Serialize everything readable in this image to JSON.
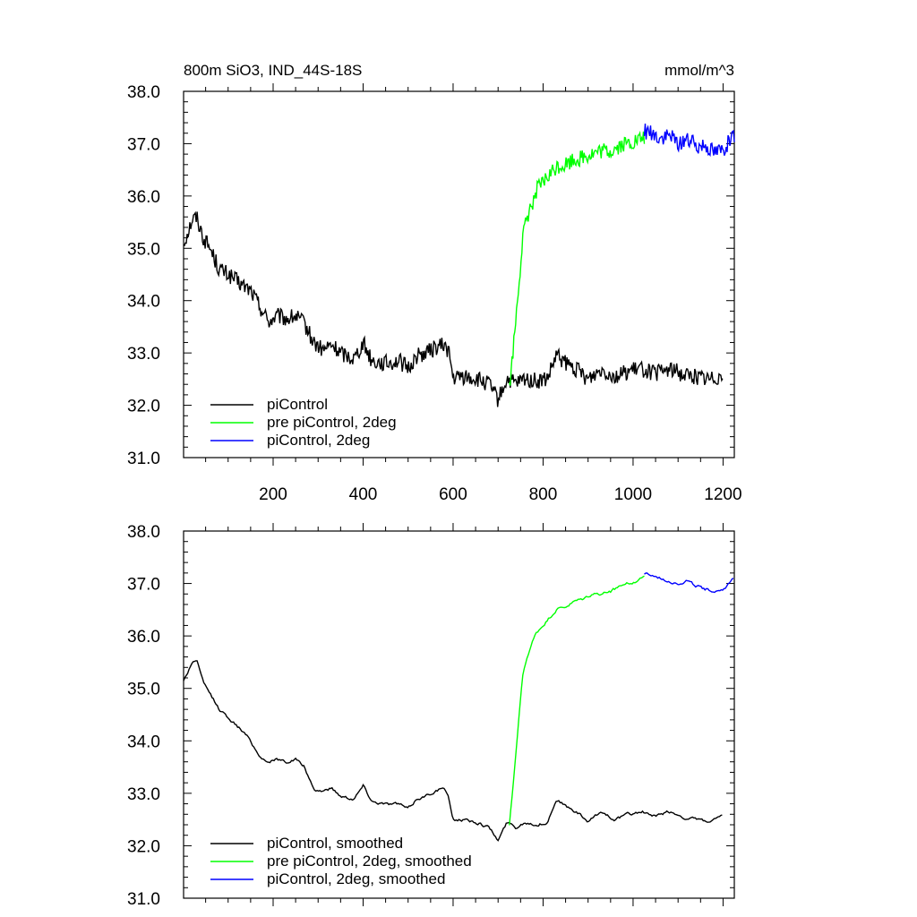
{
  "chart_data": [
    {
      "type": "line",
      "title": "800m SiO3, IND_44S-18S",
      "unit_label": "mmol/m^3",
      "xlim": [
        1,
        1225
      ],
      "ylim": [
        31.0,
        38.0
      ],
      "x_ticks": [
        200,
        400,
        600,
        800,
        1000,
        1200
      ],
      "x_tick_labels": [
        "200",
        "400",
        "600",
        "800",
        "1000",
        "1200"
      ],
      "y_ticks": [
        31.0,
        32.0,
        33.0,
        34.0,
        35.0,
        36.0,
        37.0,
        38.0
      ],
      "y_tick_labels": [
        "31.0",
        "32.0",
        "33.0",
        "34.0",
        "35.0",
        "36.0",
        "37.0",
        "38.0"
      ],
      "grid": false,
      "legend_position": "bottom-left",
      "series": [
        {
          "name": "piControl",
          "color": "#000000",
          "x": [
            1,
            10,
            20,
            30,
            45,
            60,
            80,
            100,
            130,
            150,
            170,
            190,
            210,
            230,
            250,
            270,
            290,
            310,
            330,
            350,
            380,
            400,
            420,
            450,
            480,
            500,
            520,
            540,
            560,
            580,
            590,
            600,
            620,
            650,
            680,
            700,
            720,
            740,
            760,
            790,
            810,
            830,
            850,
            880,
            900,
            930,
            960,
            990,
            1020,
            1050,
            1080,
            1110,
            1140,
            1170,
            1200
          ],
          "y": [
            35.1,
            35.3,
            35.55,
            35.6,
            35.2,
            35.0,
            34.6,
            34.5,
            34.3,
            34.2,
            33.9,
            33.6,
            33.7,
            33.65,
            33.7,
            33.55,
            33.2,
            33.05,
            33.15,
            33.0,
            32.9,
            33.2,
            32.85,
            32.8,
            32.85,
            32.7,
            32.95,
            33.0,
            33.1,
            33.15,
            33.05,
            32.5,
            32.55,
            32.5,
            32.4,
            32.1,
            32.5,
            32.4,
            32.5,
            32.45,
            32.5,
            32.95,
            32.8,
            32.65,
            32.5,
            32.7,
            32.55,
            32.65,
            32.7,
            32.6,
            32.7,
            32.6,
            32.55,
            32.5,
            32.6
          ]
        },
        {
          "name": "pre piControl, 2deg",
          "color": "#00ff00",
          "x": [
            725,
            735,
            745,
            755,
            765,
            775,
            785,
            800,
            815,
            830,
            850,
            870,
            890,
            910,
            930,
            950,
            970,
            990,
            1010,
            1025
          ],
          "y": [
            32.3,
            33.2,
            34.2,
            35.2,
            35.6,
            35.85,
            36.1,
            36.25,
            36.4,
            36.55,
            36.6,
            36.7,
            36.75,
            36.8,
            36.85,
            36.85,
            36.95,
            37.0,
            37.05,
            37.1
          ]
        },
        {
          "name": "piControl, 2deg",
          "color": "#0000ff",
          "x": [
            1025,
            1040,
            1060,
            1080,
            1100,
            1120,
            1140,
            1160,
            1180,
            1200,
            1215,
            1225
          ],
          "y": [
            37.25,
            37.2,
            37.1,
            37.15,
            37.0,
            37.1,
            36.95,
            37.0,
            36.85,
            36.9,
            37.05,
            37.1
          ]
        }
      ]
    },
    {
      "type": "line",
      "xlim": [
        1,
        1225
      ],
      "ylim": [
        31.0,
        38.0
      ],
      "y_ticks": [
        31.0,
        32.0,
        33.0,
        34.0,
        35.0,
        36.0,
        37.0,
        38.0
      ],
      "y_tick_labels": [
        "31.0",
        "32.0",
        "33.0",
        "34.0",
        "35.0",
        "36.0",
        "37.0",
        "38.0"
      ],
      "grid": false,
      "legend_position": "bottom-left",
      "series": [
        {
          "name": "piControl, smoothed",
          "color": "#000000",
          "x": [
            1,
            10,
            20,
            30,
            45,
            60,
            80,
            100,
            130,
            150,
            170,
            190,
            210,
            230,
            250,
            270,
            290,
            310,
            330,
            350,
            380,
            400,
            420,
            450,
            480,
            500,
            520,
            540,
            560,
            580,
            590,
            600,
            620,
            650,
            680,
            700,
            720,
            740,
            760,
            790,
            810,
            830,
            850,
            880,
            900,
            930,
            960,
            990,
            1020,
            1050,
            1080,
            1110,
            1140,
            1170,
            1200
          ],
          "y": [
            35.15,
            35.3,
            35.5,
            35.55,
            35.1,
            34.9,
            34.6,
            34.45,
            34.2,
            34.0,
            33.7,
            33.6,
            33.65,
            33.6,
            33.65,
            33.5,
            33.05,
            33.05,
            33.1,
            32.95,
            32.9,
            33.15,
            32.85,
            32.8,
            32.8,
            32.7,
            32.9,
            32.95,
            33.05,
            33.1,
            32.9,
            32.5,
            32.5,
            32.45,
            32.35,
            32.1,
            32.45,
            32.35,
            32.45,
            32.4,
            32.45,
            32.9,
            32.75,
            32.6,
            32.45,
            32.65,
            32.5,
            32.6,
            32.65,
            32.55,
            32.65,
            32.55,
            32.5,
            32.45,
            32.55
          ]
        },
        {
          "name": "pre piControl, 2deg, smoothed",
          "color": "#00ff00",
          "x": [
            725,
            735,
            745,
            755,
            765,
            775,
            785,
            800,
            815,
            830,
            850,
            870,
            890,
            910,
            930,
            950,
            970,
            990,
            1010,
            1025
          ],
          "y": [
            32.4,
            33.3,
            34.3,
            35.25,
            35.6,
            35.85,
            36.05,
            36.2,
            36.35,
            36.5,
            36.55,
            36.65,
            36.7,
            36.8,
            36.8,
            36.85,
            36.95,
            37.0,
            37.05,
            37.15
          ]
        },
        {
          "name": "piControl, 2deg, smoothed",
          "color": "#0000ff",
          "x": [
            1025,
            1040,
            1060,
            1080,
            1100,
            1120,
            1140,
            1160,
            1180,
            1200,
            1215,
            1225
          ],
          "y": [
            37.2,
            37.15,
            37.1,
            37.05,
            37.0,
            37.05,
            36.95,
            36.9,
            36.85,
            36.9,
            37.0,
            37.1
          ]
        }
      ]
    }
  ]
}
